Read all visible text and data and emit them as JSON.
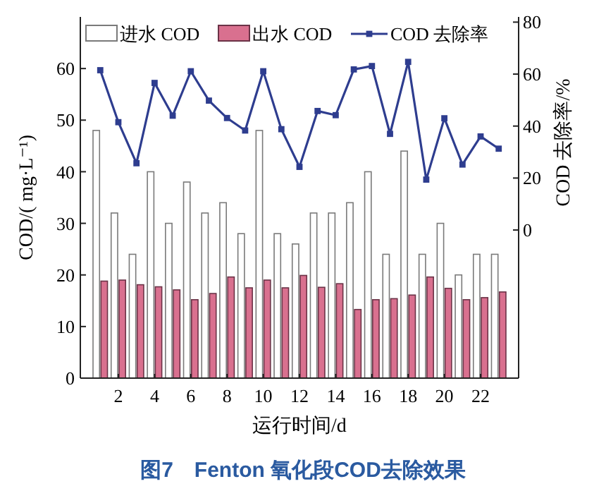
{
  "chart_data": {
    "type": "bar",
    "title": "图7　Fenton 氧化段COD去除效果",
    "xlabel": "运行时间/d",
    "ylabel": "COD/( mg·L⁻¹)",
    "y2label": "COD 去除率/%",
    "categories": [
      null,
      "2",
      null,
      "4",
      null,
      "6",
      null,
      "8",
      null,
      "10",
      null,
      "12",
      null,
      "14",
      null,
      "16",
      null,
      "18",
      null,
      "20",
      null,
      "22",
      null
    ],
    "series": [
      {
        "name": "进水 COD",
        "color": "#ffffff",
        "values": [
          48,
          32,
          24,
          40,
          30,
          38,
          32,
          34,
          28,
          48,
          28,
          26,
          32,
          32,
          34,
          40,
          24,
          44,
          24,
          30,
          20,
          24,
          24
        ]
      },
      {
        "name": "出水 COD",
        "color": "#d9708f",
        "values": [
          18.8,
          19,
          18.1,
          17.7,
          17.1,
          15.2,
          16.4,
          19.6,
          17.5,
          19,
          17.5,
          19.9,
          17.6,
          18.3,
          13.3,
          15.2,
          15.4,
          16.1,
          19.6,
          17.4,
          15.2,
          15.6,
          16.7
        ]
      },
      {
        "name": "COD 去除率",
        "type": "line",
        "axis": "y2",
        "color": "#2e3d8f",
        "marker": "square",
        "values": [
          61.5,
          41.5,
          25.7,
          56.6,
          44,
          61.1,
          49.8,
          43.1,
          38.3,
          61.1,
          38.8,
          24.3,
          45.8,
          44.2,
          61.8,
          63.1,
          37,
          64.7,
          19.4,
          43,
          25.2,
          36,
          31.3
        ]
      }
    ],
    "ylim": [
      0,
      70
    ],
    "yticks": [
      0,
      10,
      20,
      30,
      40,
      50,
      60
    ],
    "y2lim": [
      -57,
      82
    ],
    "y2ticks": [
      0,
      20,
      40,
      60,
      80
    ],
    "legend": "top",
    "grid": false
  }
}
